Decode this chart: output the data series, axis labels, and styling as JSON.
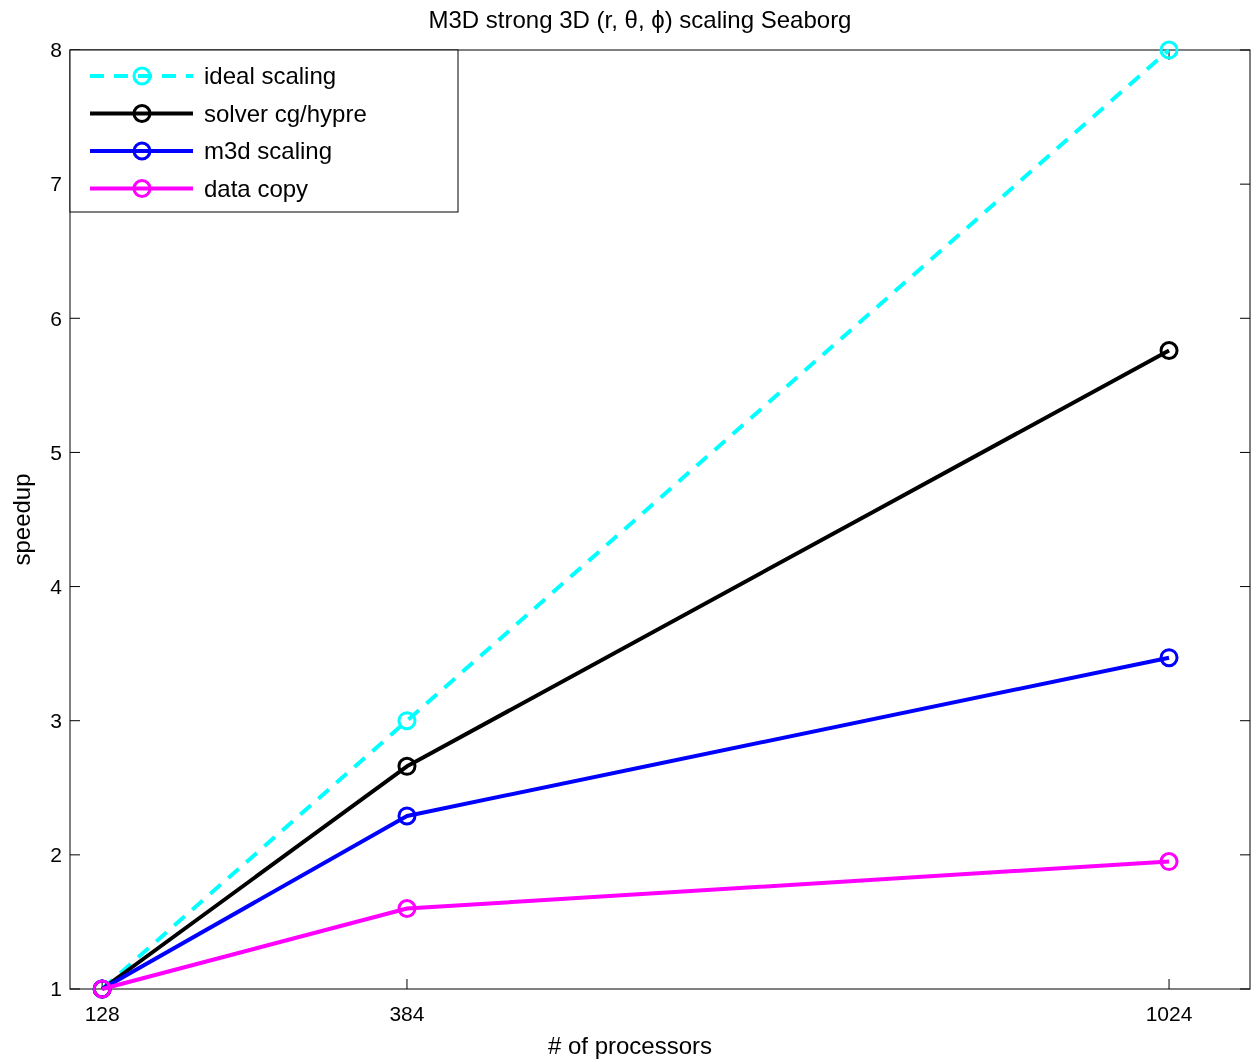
{
  "chart_data": {
    "type": "line",
    "title": "M3D strong 3D (r, θ, ϕ) scaling Seaborg",
    "xlabel": "# of processors",
    "ylabel": "speedup",
    "x": [
      128,
      384,
      1024
    ],
    "xlim": [
      101,
      1092
    ],
    "xticks": [
      128,
      384,
      1024
    ],
    "ylim": [
      1,
      8
    ],
    "yticks": [
      1,
      2,
      3,
      4,
      5,
      6,
      7,
      8
    ],
    "grid": false,
    "legend": "top left",
    "marker": "circle",
    "series": [
      {
        "name": "ideal scaling",
        "color": "#00ffff",
        "values": [
          1,
          3,
          8
        ],
        "line_style": "dashed"
      },
      {
        "name": "solver cg/hypre",
        "color": "#000000",
        "values": [
          1,
          2.66,
          5.76
        ],
        "line_style": "solid"
      },
      {
        "name": "m3d scaling",
        "color": "#0000ff",
        "values": [
          1,
          2.29,
          3.47
        ],
        "line_style": "solid"
      },
      {
        "name": "data copy",
        "color": "#ff00ff",
        "values": [
          1,
          1.6,
          1.95
        ],
        "line_style": "solid"
      }
    ]
  }
}
